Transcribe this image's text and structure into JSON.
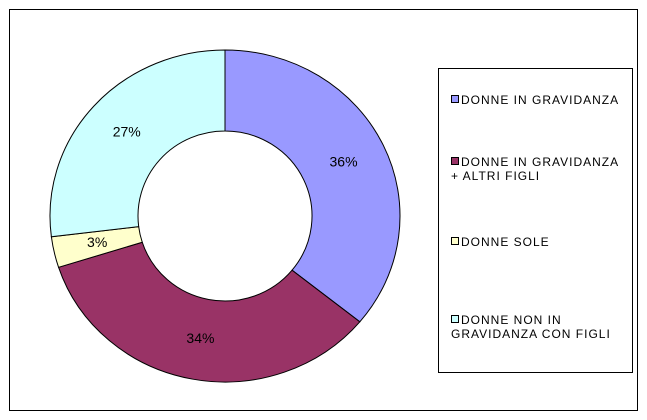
{
  "chart_data": {
    "type": "donut",
    "categories": [
      "DONNE IN GRAVIDANZA",
      "DONNE IN GRAVIDANZA + ALTRI FIGLI",
      "DONNE SOLE",
      "DONNE NON IN GRAVIDANZA CON FIGLI"
    ],
    "values": [
      36,
      34,
      3,
      27
    ],
    "value_labels": [
      "36%",
      "34%",
      "3%",
      "27%"
    ],
    "colors": [
      "#9999ff",
      "#993366",
      "#ffffcc",
      "#ccffff"
    ],
    "legend": "right"
  }
}
